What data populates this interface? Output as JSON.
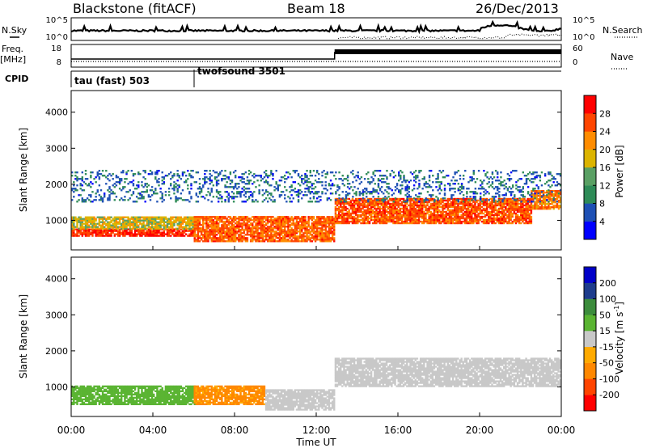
{
  "header": {
    "station": "Blackstone (fitACF)",
    "beam": "Beam 18",
    "date": "26/Dec/2013"
  },
  "status_panel": {
    "nsky_label": "N.Sky",
    "nsearch_label": "N.Search",
    "nsky_ticks": [
      "10^5",
      "10^0"
    ],
    "nsearch_ticks": [
      "10^5",
      "10^0"
    ],
    "freq_label": "Freq.",
    "freq_unit": "[MHz]",
    "freq_ticks": [
      "18",
      "8"
    ],
    "nave_label": "Nave",
    "nave_ticks": [
      "60",
      "0"
    ],
    "cpid_label": "CPID",
    "cpid_segments": [
      {
        "name": "tau (fast) 503",
        "start_hour": 0
      },
      {
        "name": "twofsound 3501",
        "start_hour": 6
      }
    ]
  },
  "colors": {
    "power_scale": [
      "#0000ff",
      "#1e50b4",
      "#2e8b57",
      "#5aa064",
      "#dcb400",
      "#ff8c00",
      "#ff4500",
      "#ff0000"
    ],
    "velocity_scale": [
      "#ff0000",
      "#ff4400",
      "#ff8800",
      "#ffaa00",
      "#c8c8c8",
      "#5ab432",
      "#3c8c3c",
      "#1e3c8c",
      "#0000c8"
    ]
  },
  "chart_data": [
    {
      "type": "heatmap",
      "title": "",
      "xlabel": "Time UT",
      "ylabel": "Slant Range [km]",
      "x_range_hours": [
        0,
        24
      ],
      "xtick_labels": [
        "00:00",
        "04:00",
        "08:00",
        "12:00",
        "16:00",
        "20:00",
        "00:00"
      ],
      "ylim": [
        180,
        4600
      ],
      "ytick_labels": [
        "1000",
        "2000",
        "3000",
        "4000"
      ],
      "ytick_values": [
        1000,
        2000,
        3000,
        4000
      ],
      "colorbar": {
        "label": "Power [dB]",
        "tick_labels": [
          "4",
          "8",
          "12",
          "16",
          "20",
          "24",
          "28"
        ],
        "range": [
          0,
          32
        ]
      },
      "scatter_bands": [
        {
          "start_hour": 0.0,
          "end_hour": 6.0,
          "range_km": [
            550,
            750
          ],
          "power_db": 30
        },
        {
          "start_hour": 0.0,
          "end_hour": 6.0,
          "range_km": [
            750,
            1100
          ],
          "power_db": 18
        },
        {
          "start_hour": 6.0,
          "end_hour": 12.9,
          "range_km": [
            400,
            1100
          ],
          "power_db": 26
        },
        {
          "start_hour": 12.9,
          "end_hour": 22.5,
          "range_km": [
            900,
            1600
          ],
          "power_db": 27
        },
        {
          "start_hour": 22.5,
          "end_hour": 24.0,
          "range_km": [
            1300,
            1800
          ],
          "power_db": 24
        },
        {
          "start_hour": 0.0,
          "end_hour": 24.0,
          "range_km": [
            1500,
            2400
          ],
          "power_db": 6
        }
      ]
    },
    {
      "type": "heatmap",
      "title": "",
      "xlabel": "Time UT",
      "ylabel": "Slant Range [km]",
      "x_range_hours": [
        0,
        24
      ],
      "xtick_labels": [
        "00:00",
        "04:00",
        "08:00",
        "12:00",
        "16:00",
        "20:00",
        "00:00"
      ],
      "ylim": [
        180,
        4600
      ],
      "ytick_labels": [
        "1000",
        "2000",
        "3000",
        "4000"
      ],
      "ytick_values": [
        1000,
        2000,
        3000,
        4000
      ],
      "colorbar": {
        "label": "Velocity [m s^-1]",
        "unit_main": "Velocity [m s",
        "unit_sup": "-1",
        "tick_labels": [
          "-200",
          "-100",
          "-50",
          "-15",
          "15",
          "50",
          "100",
          "200"
        ],
        "tick_values": [
          -200,
          -100,
          -50,
          -15,
          15,
          50,
          100,
          200
        ]
      },
      "scatter_bands": [
        {
          "start_hour": 0.0,
          "end_hour": 6.0,
          "range_km": [
            500,
            1000
          ],
          "velocity": 30
        },
        {
          "start_hour": 6.0,
          "end_hour": 9.5,
          "range_km": [
            500,
            1000
          ],
          "velocity": -60
        },
        {
          "start_hour": 9.5,
          "end_hour": 12.9,
          "range_km": [
            350,
            900
          ],
          "velocity": 0
        },
        {
          "start_hour": 12.9,
          "end_hour": 24.0,
          "range_km": [
            1000,
            1800
          ],
          "velocity": 0
        }
      ]
    }
  ]
}
